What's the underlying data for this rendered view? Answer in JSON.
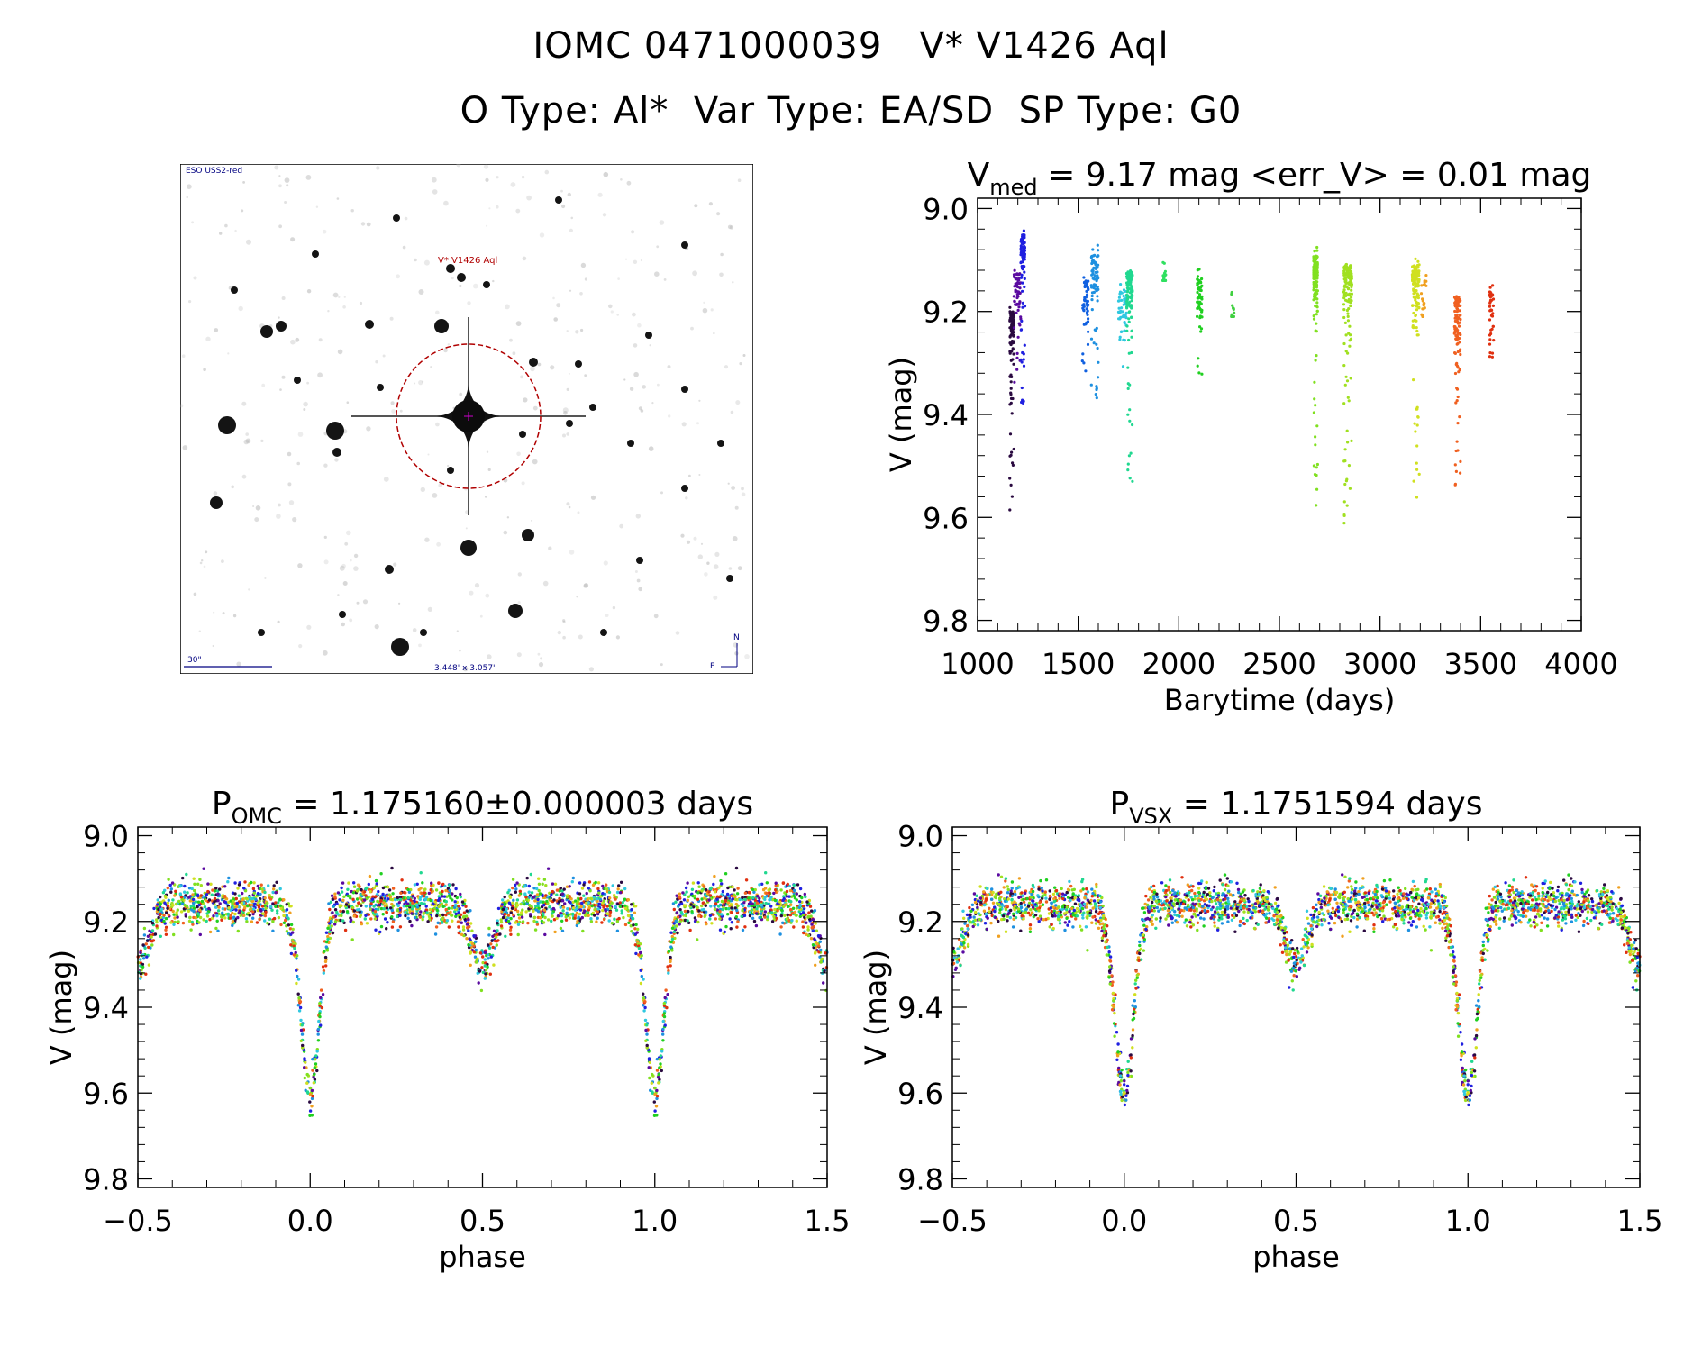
{
  "header": {
    "title_line1": "IOMC 0471000039   V* V1426 Aql",
    "title_line2": "O Type: Al*  Var Type: EA/SD  SP Type: G0"
  },
  "finder_chart": {
    "survey_label": "ESO USS2-red",
    "target_label": "V* V1426 Aql",
    "scale_label": "30\"",
    "fov_label": "3.448' x 3.057'",
    "north_label": "N",
    "east_label": "E"
  },
  "colors": {
    "frame": "#000000",
    "circle": "#b00000",
    "crosshair": "#cc00cc",
    "survey_text": "#000080"
  },
  "chart_data": [
    {
      "id": "lightcurve",
      "type": "scatter",
      "title_prefix": "V",
      "title_sub": "med",
      "title_rest": " = 9.17 mag <err_V> = 0.01 mag",
      "xlabel": "Barytime (days)",
      "ylabel": "V (mag)",
      "xlim": [
        1000,
        4000
      ],
      "ylim": [
        9.82,
        8.98
      ],
      "xticks": [
        1000,
        1500,
        2000,
        2500,
        3000,
        3500,
        4000
      ],
      "yticks": [
        9.0,
        9.2,
        9.4,
        9.6,
        9.8
      ],
      "ytick_labels": [
        "9.0",
        "9.2",
        "9.4",
        "9.6",
        "9.8"
      ],
      "groups": [
        {
          "t_start": 1160,
          "t_end": 1180,
          "v_min": 9.18,
          "v_max": 9.59,
          "color": "#2a0a40"
        },
        {
          "t_start": 1180,
          "t_end": 1215,
          "v_min": 9.1,
          "v_max": 9.34,
          "color": "#5a0aa0"
        },
        {
          "t_start": 1215,
          "t_end": 1235,
          "v_min": 9.03,
          "v_max": 9.38,
          "color": "#2020e0"
        },
        {
          "t_start": 1520,
          "t_end": 1550,
          "v_min": 9.12,
          "v_max": 9.32,
          "color": "#1060e0"
        },
        {
          "t_start": 1565,
          "t_end": 1600,
          "v_min": 9.07,
          "v_max": 9.37,
          "color": "#1e90e0"
        },
        {
          "t_start": 1700,
          "t_end": 1740,
          "v_min": 9.14,
          "v_max": 9.33,
          "color": "#30c8e0"
        },
        {
          "t_start": 1740,
          "t_end": 1770,
          "v_min": 9.1,
          "v_max": 9.56,
          "color": "#20d890"
        },
        {
          "t_start": 1920,
          "t_end": 1935,
          "v_min": 9.1,
          "v_max": 9.14,
          "color": "#30e060"
        },
        {
          "t_start": 2090,
          "t_end": 2115,
          "v_min": 9.11,
          "v_max": 9.33,
          "color": "#20d020"
        },
        {
          "t_start": 2260,
          "t_end": 2275,
          "v_min": 9.16,
          "v_max": 9.21,
          "color": "#40d040"
        },
        {
          "t_start": 2670,
          "t_end": 2690,
          "v_min": 9.07,
          "v_max": 9.6,
          "color": "#80e020"
        },
        {
          "t_start": 2820,
          "t_end": 2860,
          "v_min": 9.09,
          "v_max": 9.63,
          "color": "#a0e020"
        },
        {
          "t_start": 3160,
          "t_end": 3195,
          "v_min": 9.09,
          "v_max": 9.58,
          "color": "#d0e020"
        },
        {
          "t_start": 3205,
          "t_end": 3230,
          "v_min": 9.12,
          "v_max": 9.21,
          "color": "#f0a020"
        },
        {
          "t_start": 3370,
          "t_end": 3400,
          "v_min": 9.15,
          "v_max": 9.57,
          "color": "#f06020"
        },
        {
          "t_start": 3545,
          "t_end": 3565,
          "v_min": 9.14,
          "v_max": 9.29,
          "color": "#e03010"
        }
      ]
    },
    {
      "id": "phase_omc",
      "type": "scatter",
      "title_prefix": "P",
      "title_sub": "OMC",
      "title_rest": " = 1.175160±0.000003 days",
      "xlabel": "phase",
      "ylabel": "V (mag)",
      "xlim": [
        -0.5,
        1.5
      ],
      "ylim": [
        9.82,
        8.98
      ],
      "xticks": [
        -0.5,
        0.0,
        0.5,
        1.0,
        1.5
      ],
      "xtick_labels": [
        "−0.5",
        "0.0",
        "0.5",
        "1.0",
        "1.5"
      ],
      "yticks": [
        9.0,
        9.2,
        9.4,
        9.6,
        9.8
      ],
      "ytick_labels": [
        "9.0",
        "9.2",
        "9.4",
        "9.6",
        "9.8"
      ],
      "light_curve_model": {
        "baseline": 9.16,
        "primary_depth": 0.44,
        "primary_phase": 0.0,
        "secondary_depth": 0.14,
        "secondary_phase": 0.5,
        "eclipse_width": 0.045
      }
    },
    {
      "id": "phase_vsx",
      "type": "scatter",
      "title_prefix": "P",
      "title_sub": "VSX",
      "title_rest": " = 1.1751594 days",
      "xlabel": "phase",
      "ylabel": "V (mag)",
      "xlim": [
        -0.5,
        1.5
      ],
      "ylim": [
        9.82,
        8.98
      ],
      "xticks": [
        -0.5,
        0.0,
        0.5,
        1.0,
        1.5
      ],
      "xtick_labels": [
        "−0.5",
        "0.0",
        "0.5",
        "1.0",
        "1.5"
      ],
      "yticks": [
        9.0,
        9.2,
        9.4,
        9.6,
        9.8
      ],
      "ytick_labels": [
        "9.0",
        "9.2",
        "9.4",
        "9.6",
        "9.8"
      ],
      "light_curve_model": {
        "baseline": 9.16,
        "primary_depth": 0.44,
        "primary_phase": 0.0,
        "secondary_depth": 0.14,
        "secondary_phase": 0.5,
        "eclipse_width": 0.045
      }
    }
  ]
}
